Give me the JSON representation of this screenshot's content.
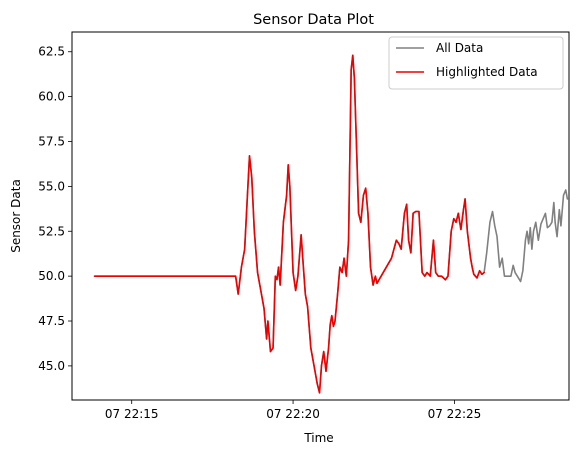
{
  "chart_data": {
    "type": "line",
    "title": "Sensor Data Plot",
    "xlabel": "Time",
    "ylabel": "Sensor Data",
    "x_unit": "minutes after 07 22:00",
    "xlim": [
      13.15,
      28.55
    ],
    "ylim": [
      43.1,
      63.6
    ],
    "xticks": [
      {
        "value": 15,
        "label": "07 22:15"
      },
      {
        "value": 20,
        "label": "07 22:20"
      },
      {
        "value": 25,
        "label": "07 22:25"
      }
    ],
    "yticks": [
      {
        "value": 45.0,
        "label": "45.0"
      },
      {
        "value": 47.5,
        "label": "47.5"
      },
      {
        "value": 50.0,
        "label": "50.0"
      },
      {
        "value": 52.5,
        "label": "52.5"
      },
      {
        "value": 55.0,
        "label": "55.0"
      },
      {
        "value": 57.5,
        "label": "57.5"
      },
      {
        "value": 60.0,
        "label": "60.0"
      },
      {
        "value": 62.5,
        "label": "62.5"
      }
    ],
    "grid": false,
    "legend_position": "top-right",
    "series": [
      {
        "name": "All Data",
        "color": "#808080",
        "points": [
          [
            13.85,
            50.0
          ],
          [
            18.22,
            50.0
          ],
          [
            18.3,
            49.0
          ],
          [
            18.4,
            50.5
          ],
          [
            18.5,
            51.5
          ],
          [
            18.6,
            55.0
          ],
          [
            18.65,
            56.7
          ],
          [
            18.72,
            55.5
          ],
          [
            18.8,
            52.5
          ],
          [
            18.9,
            50.2
          ],
          [
            19.0,
            49.2
          ],
          [
            19.1,
            48.2
          ],
          [
            19.18,
            46.5
          ],
          [
            19.22,
            47.5
          ],
          [
            19.3,
            45.8
          ],
          [
            19.38,
            46.0
          ],
          [
            19.45,
            50.0
          ],
          [
            19.5,
            49.8
          ],
          [
            19.55,
            50.5
          ],
          [
            19.6,
            49.5
          ],
          [
            19.7,
            53.0
          ],
          [
            19.8,
            54.5
          ],
          [
            19.85,
            56.2
          ],
          [
            19.9,
            55.0
          ],
          [
            20.0,
            50.2
          ],
          [
            20.08,
            49.2
          ],
          [
            20.15,
            50.0
          ],
          [
            20.25,
            52.3
          ],
          [
            20.3,
            51.0
          ],
          [
            20.38,
            49.0
          ],
          [
            20.45,
            48.3
          ],
          [
            20.55,
            46.0
          ],
          [
            20.65,
            45.0
          ],
          [
            20.75,
            44.0
          ],
          [
            20.82,
            43.5
          ],
          [
            20.88,
            45.0
          ],
          [
            20.95,
            45.8
          ],
          [
            21.02,
            44.7
          ],
          [
            21.1,
            46.0
          ],
          [
            21.15,
            47.3
          ],
          [
            21.2,
            47.8
          ],
          [
            21.25,
            47.2
          ],
          [
            21.3,
            47.5
          ],
          [
            21.38,
            49.0
          ],
          [
            21.45,
            50.5
          ],
          [
            21.52,
            50.2
          ],
          [
            21.58,
            51.0
          ],
          [
            21.65,
            50.0
          ],
          [
            21.72,
            52.0
          ],
          [
            21.8,
            61.5
          ],
          [
            21.85,
            62.3
          ],
          [
            21.9,
            61.0
          ],
          [
            21.97,
            57.0
          ],
          [
            22.03,
            53.5
          ],
          [
            22.1,
            53.0
          ],
          [
            22.18,
            54.5
          ],
          [
            22.25,
            54.9
          ],
          [
            22.32,
            53.5
          ],
          [
            22.4,
            50.5
          ],
          [
            22.48,
            49.5
          ],
          [
            22.55,
            50.0
          ],
          [
            22.6,
            49.6
          ],
          [
            23.05,
            51.0
          ],
          [
            23.2,
            52.0
          ],
          [
            23.28,
            51.8
          ],
          [
            23.35,
            51.5
          ],
          [
            23.45,
            53.5
          ],
          [
            23.52,
            54.0
          ],
          [
            23.58,
            52.0
          ],
          [
            23.65,
            51.3
          ],
          [
            23.72,
            53.5
          ],
          [
            23.8,
            53.6
          ],
          [
            23.9,
            53.6
          ],
          [
            24.0,
            50.2
          ],
          [
            24.08,
            50.0
          ],
          [
            24.15,
            50.2
          ],
          [
            24.25,
            50.0
          ],
          [
            24.35,
            52.0
          ],
          [
            24.42,
            50.2
          ],
          [
            24.5,
            50.0
          ],
          [
            24.6,
            50.0
          ],
          [
            24.72,
            49.8
          ],
          [
            24.8,
            50.0
          ],
          [
            24.9,
            52.5
          ],
          [
            24.98,
            53.2
          ],
          [
            25.05,
            53.0
          ],
          [
            25.12,
            53.5
          ],
          [
            25.2,
            52.6
          ],
          [
            25.28,
            53.7
          ],
          [
            25.33,
            54.3
          ],
          [
            25.4,
            52.5
          ],
          [
            25.5,
            51.0
          ],
          [
            25.55,
            50.5
          ],
          [
            25.6,
            50.1
          ],
          [
            25.7,
            49.9
          ],
          [
            25.78,
            50.3
          ],
          [
            25.85,
            50.1
          ],
          [
            25.92,
            50.2
          ],
          [
            26.0,
            51.3
          ],
          [
            26.1,
            53.0
          ],
          [
            26.18,
            53.6
          ],
          [
            26.25,
            52.8
          ],
          [
            26.32,
            52.2
          ],
          [
            26.4,
            50.5
          ],
          [
            26.48,
            51.0
          ],
          [
            26.55,
            50.0
          ],
          [
            26.75,
            50.0
          ],
          [
            26.82,
            50.6
          ],
          [
            26.88,
            50.2
          ],
          [
            26.95,
            50.0
          ],
          [
            27.05,
            49.7
          ],
          [
            27.12,
            50.3
          ],
          [
            27.2,
            52.0
          ],
          [
            27.25,
            52.5
          ],
          [
            27.3,
            51.8
          ],
          [
            27.35,
            52.7
          ],
          [
            27.4,
            51.5
          ],
          [
            27.45,
            52.5
          ],
          [
            27.52,
            53.0
          ],
          [
            27.6,
            52.0
          ],
          [
            27.68,
            52.9
          ],
          [
            27.75,
            53.2
          ],
          [
            27.82,
            53.5
          ],
          [
            27.88,
            52.7
          ],
          [
            27.95,
            52.8
          ],
          [
            28.02,
            53.0
          ],
          [
            28.08,
            54.1
          ],
          [
            28.12,
            53.0
          ],
          [
            28.18,
            52.2
          ],
          [
            28.25,
            53.7
          ],
          [
            28.3,
            52.8
          ],
          [
            28.38,
            54.5
          ],
          [
            28.45,
            54.8
          ],
          [
            28.5,
            54.3
          ]
        ]
      },
      {
        "name": "Highlighted Data",
        "color": "#ee0000",
        "points": [
          [
            13.85,
            50.0
          ],
          [
            18.22,
            50.0
          ],
          [
            18.3,
            49.0
          ],
          [
            18.4,
            50.5
          ],
          [
            18.5,
            51.5
          ],
          [
            18.6,
            55.0
          ],
          [
            18.65,
            56.7
          ],
          [
            18.72,
            55.5
          ],
          [
            18.8,
            52.5
          ],
          [
            18.9,
            50.2
          ],
          [
            19.0,
            49.2
          ],
          [
            19.1,
            48.2
          ],
          [
            19.18,
            46.5
          ],
          [
            19.22,
            47.5
          ],
          [
            19.3,
            45.8
          ],
          [
            19.38,
            46.0
          ],
          [
            19.45,
            50.0
          ],
          [
            19.5,
            49.8
          ],
          [
            19.55,
            50.5
          ],
          [
            19.6,
            49.5
          ],
          [
            19.7,
            53.0
          ],
          [
            19.8,
            54.5
          ],
          [
            19.85,
            56.2
          ],
          [
            19.9,
            55.0
          ],
          [
            20.0,
            50.2
          ],
          [
            20.08,
            49.2
          ],
          [
            20.15,
            50.0
          ],
          [
            20.25,
            52.3
          ],
          [
            20.3,
            51.0
          ],
          [
            20.38,
            49.0
          ],
          [
            20.45,
            48.3
          ],
          [
            20.55,
            46.0
          ],
          [
            20.65,
            45.0
          ],
          [
            20.75,
            44.0
          ],
          [
            20.82,
            43.5
          ],
          [
            20.88,
            45.0
          ],
          [
            20.95,
            45.8
          ],
          [
            21.02,
            44.7
          ],
          [
            21.1,
            46.0
          ],
          [
            21.15,
            47.3
          ],
          [
            21.2,
            47.8
          ],
          [
            21.25,
            47.2
          ],
          [
            21.3,
            47.5
          ],
          [
            21.38,
            49.0
          ],
          [
            21.45,
            50.5
          ],
          [
            21.52,
            50.2
          ],
          [
            21.58,
            51.0
          ],
          [
            21.65,
            50.0
          ],
          [
            21.72,
            52.0
          ],
          [
            21.8,
            61.5
          ],
          [
            21.85,
            62.3
          ],
          [
            21.9,
            61.0
          ],
          [
            21.97,
            57.0
          ],
          [
            22.03,
            53.5
          ],
          [
            22.1,
            53.0
          ],
          [
            22.18,
            54.5
          ],
          [
            22.25,
            54.9
          ],
          [
            22.32,
            53.5
          ],
          [
            22.4,
            50.5
          ],
          [
            22.48,
            49.5
          ],
          [
            22.55,
            50.0
          ],
          [
            22.6,
            49.6
          ],
          [
            23.05,
            51.0
          ],
          [
            23.2,
            52.0
          ],
          [
            23.28,
            51.8
          ],
          [
            23.35,
            51.5
          ],
          [
            23.45,
            53.5
          ],
          [
            23.52,
            54.0
          ],
          [
            23.58,
            52.0
          ],
          [
            23.65,
            51.3
          ],
          [
            23.72,
            53.5
          ],
          [
            23.8,
            53.6
          ],
          [
            23.9,
            53.6
          ],
          [
            24.0,
            50.2
          ],
          [
            24.08,
            50.0
          ],
          [
            24.15,
            50.2
          ],
          [
            24.25,
            50.0
          ],
          [
            24.35,
            52.0
          ],
          [
            24.42,
            50.2
          ],
          [
            24.5,
            50.0
          ],
          [
            24.6,
            50.0
          ],
          [
            24.72,
            49.8
          ],
          [
            24.8,
            50.0
          ],
          [
            24.9,
            52.5
          ],
          [
            24.98,
            53.2
          ],
          [
            25.05,
            53.0
          ],
          [
            25.12,
            53.5
          ],
          [
            25.2,
            52.6
          ],
          [
            25.28,
            53.7
          ],
          [
            25.33,
            54.3
          ],
          [
            25.4,
            52.5
          ],
          [
            25.5,
            51.0
          ],
          [
            25.55,
            50.5
          ],
          [
            25.6,
            50.1
          ],
          [
            25.7,
            49.9
          ],
          [
            25.78,
            50.3
          ],
          [
            25.85,
            50.1
          ],
          [
            25.92,
            50.2
          ]
        ]
      }
    ]
  }
}
